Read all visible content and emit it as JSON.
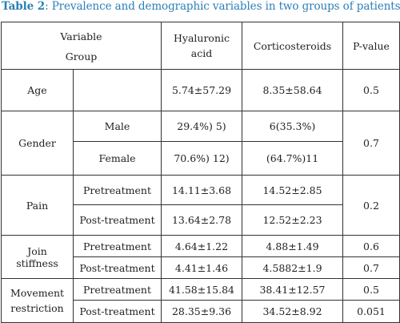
{
  "caption": {
    "label": "Table 2",
    "text": ": Prevalence and demographic variables in two groups of patients."
  },
  "header": {
    "variable": "Variable",
    "group": "Group",
    "col1_line1": "Hyaluronic",
    "col1_line2": "acid",
    "col2": "Corticosteroids",
    "col3": "P-value"
  },
  "rows": {
    "age": {
      "label": "Age",
      "sub": "",
      "ha": "5.74±57.29",
      "cs": "8.35±58.64",
      "p": "0.5"
    },
    "gender": {
      "label": "Gender",
      "p": "0.7",
      "male": {
        "sub": "Male",
        "ha": "29.4%) 5)",
        "cs": "6(35.3%)"
      },
      "female": {
        "sub": "Female",
        "ha": "70.6%) 12)",
        "cs": "(64.7%)11"
      }
    },
    "pain": {
      "label": "Pain",
      "p": "0.2",
      "pre": {
        "sub": "Pretreatment",
        "ha": "14.11±3.68",
        "cs": "14.52±2.85"
      },
      "post": {
        "sub": "Post-treatment",
        "ha": "13.64±2.78",
        "cs": "12.52±2.23"
      }
    },
    "join": {
      "label1": "Join",
      "label2": "stiffness",
      "pre": {
        "sub": "Pretreatment",
        "ha": "4.64±1.22",
        "cs": "4.88±1.49",
        "p": "0.6"
      },
      "post": {
        "sub": "Post-treatment",
        "ha": "4.41±1.46",
        "cs": "4.5882±1.9",
        "p": "0.7"
      }
    },
    "movement": {
      "label1": "Movement",
      "label2": "restriction",
      "pre": {
        "sub": "Pretreatment",
        "ha": "41.58±15.84",
        "cs": "38.41±12.57",
        "p": "0.5"
      },
      "post": {
        "sub": "Post-treatment",
        "ha": "28.35±9.36",
        "cs": "34.52±8.92",
        "p": "0.051"
      }
    }
  }
}
